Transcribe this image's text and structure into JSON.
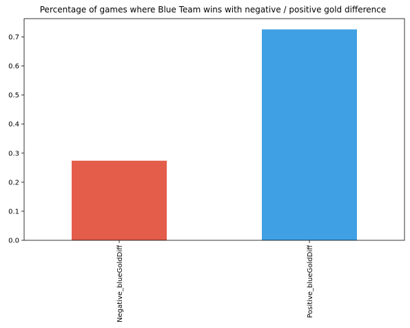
{
  "chart_data": {
    "type": "bar",
    "title": "Percentage of games where Blue Team wins with negative / positive gold difference",
    "xlabel": "",
    "ylabel": "",
    "categories": [
      "Negative_blueGoldDiff",
      "Positive_blueGoldDiff"
    ],
    "values": [
      0.274,
      0.726
    ],
    "colors": [
      "#e35d4a",
      "#3fa0e3"
    ],
    "ylim": [
      0,
      0.763
    ],
    "yticks": [
      0.0,
      0.1,
      0.2,
      0.3,
      0.4,
      0.5,
      0.6,
      0.7
    ],
    "ytick_labels": [
      "0.0",
      "0.1",
      "0.2",
      "0.3",
      "0.4",
      "0.5",
      "0.6",
      "0.7"
    ],
    "grid": false,
    "legend": "none",
    "x_label_rotation": "vertical"
  }
}
